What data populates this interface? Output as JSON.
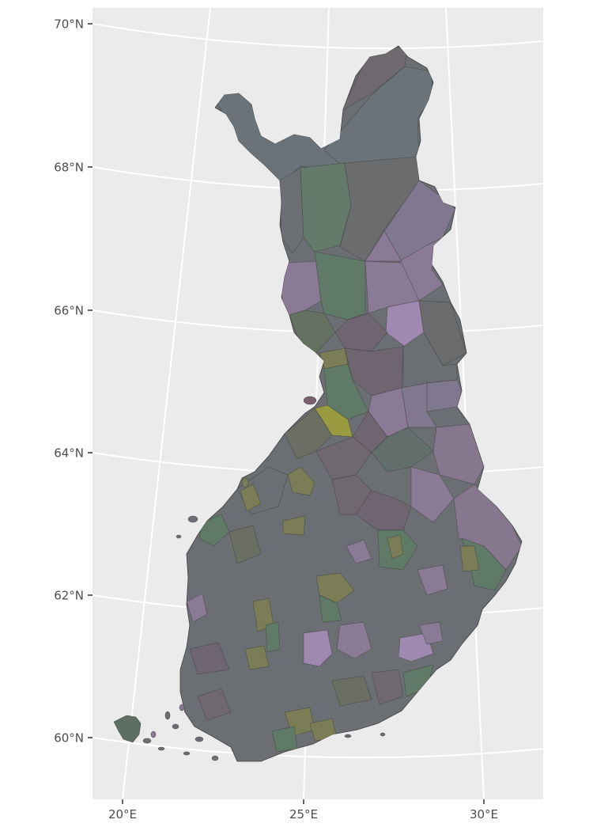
{
  "map": {
    "lat_labels": [
      {
        "value": 70,
        "label": "70°N"
      },
      {
        "value": 68,
        "label": "68°N"
      },
      {
        "value": 66,
        "label": "66°N"
      },
      {
        "value": 64,
        "label": "64°N"
      },
      {
        "value": 62,
        "label": "62°N"
      },
      {
        "value": 60,
        "label": "60°N"
      }
    ],
    "lon_labels": [
      {
        "value": 20,
        "label": "20°E"
      },
      {
        "value": 25,
        "label": "25°E"
      },
      {
        "value": 30,
        "label": "30°E"
      }
    ],
    "colors": {
      "panel_background": "#ebebeb",
      "gridline": "#ffffff",
      "tick_label": "#4d4d4d",
      "land_gray": "#6b6e72",
      "land_slate": "#6a737a",
      "land_green": "#647a6a",
      "land_purple": "#8a7a96",
      "land_olive": "#7a7d55",
      "land_yellow": "#9a9a40",
      "land_lilac": "#a089b0"
    }
  }
}
